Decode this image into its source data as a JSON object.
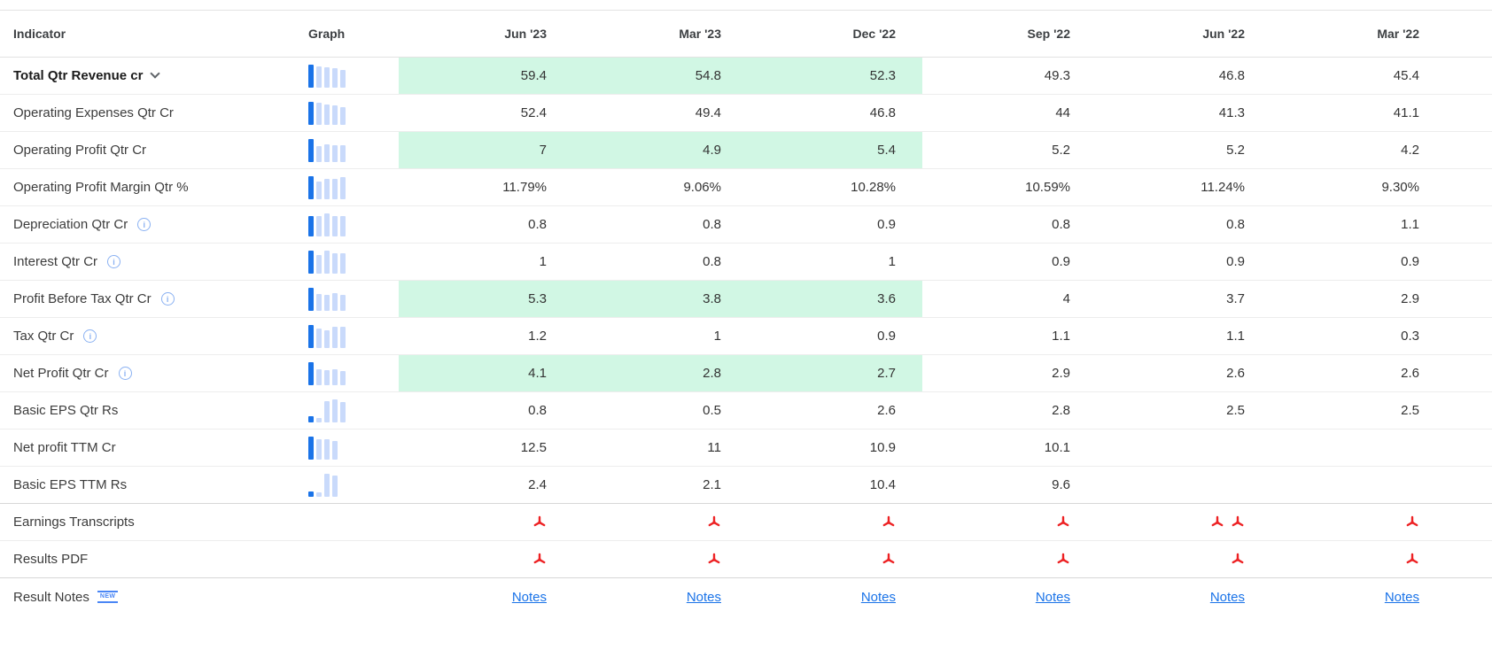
{
  "colors": {
    "highlight": "#d1f7e4",
    "bar_dark": "#1a73e8",
    "bar_light": "#c9dafb",
    "link": "#1a73e8",
    "pdf_red": "#ed2224",
    "badge_blue": "#4a86f5",
    "info_blue": "#8ab1f2"
  },
  "table": {
    "header": {
      "indicator": "Indicator",
      "graph": "Graph",
      "periods": [
        "Jun '23",
        "Mar '23",
        "Dec '22",
        "Sep '22",
        "Jun '22",
        "Mar '22"
      ]
    },
    "rows": [
      {
        "label": "Total Qtr Revenue cr",
        "bold": true,
        "chevron": true,
        "highlight": true,
        "type": "values",
        "values": [
          "59.4",
          "54.8",
          "52.3",
          "49.3",
          "46.8",
          "45.4"
        ],
        "spark": [
          59.4,
          54.8,
          52.3,
          49.3,
          46.8
        ]
      },
      {
        "label": "Operating Expenses Qtr Cr",
        "type": "values",
        "values": [
          "52.4",
          "49.4",
          "46.8",
          "44",
          "41.3",
          "41.1"
        ],
        "spark": [
          52.4,
          49.4,
          46.8,
          44,
          41.3
        ]
      },
      {
        "label": "Operating Profit Qtr Cr",
        "highlight": true,
        "type": "values",
        "values": [
          "7",
          "4.9",
          "5.4",
          "5.2",
          "5.2",
          "4.2"
        ],
        "spark": [
          7,
          4.9,
          5.4,
          5.2,
          5.2
        ]
      },
      {
        "label": "Operating Profit Margin Qtr %",
        "type": "values",
        "values": [
          "11.79%",
          "9.06%",
          "10.28%",
          "10.59%",
          "11.24%",
          "9.30%"
        ],
        "spark": [
          11.79,
          9.06,
          10.28,
          10.59,
          11.24
        ]
      },
      {
        "label": "Depreciation Qtr Cr",
        "info": true,
        "type": "values",
        "values": [
          "0.8",
          "0.8",
          "0.9",
          "0.8",
          "0.8",
          "1.1"
        ],
        "spark": [
          0.8,
          0.8,
          0.9,
          0.8,
          0.8
        ]
      },
      {
        "label": "Interest Qtr Cr",
        "info": true,
        "type": "values",
        "values": [
          "1",
          "0.8",
          "1",
          "0.9",
          "0.9",
          "0.9"
        ],
        "spark": [
          1,
          0.8,
          1,
          0.9,
          0.9
        ]
      },
      {
        "label": "Profit Before Tax Qtr Cr",
        "info": true,
        "highlight": true,
        "type": "values",
        "values": [
          "5.3",
          "3.8",
          "3.6",
          "4",
          "3.7",
          "2.9"
        ],
        "spark": [
          5.3,
          3.8,
          3.6,
          4,
          3.7
        ]
      },
      {
        "label": "Tax Qtr Cr",
        "info": true,
        "type": "values",
        "values": [
          "1.2",
          "1",
          "0.9",
          "1.1",
          "1.1",
          "0.3"
        ],
        "spark": [
          1.2,
          1,
          0.9,
          1.1,
          1.1
        ]
      },
      {
        "label": "Net Profit Qtr Cr",
        "info": true,
        "highlight": true,
        "type": "values",
        "values": [
          "4.1",
          "2.8",
          "2.7",
          "2.9",
          "2.6",
          "2.6"
        ],
        "spark": [
          4.1,
          2.8,
          2.7,
          2.9,
          2.6
        ]
      },
      {
        "label": "Basic EPS Qtr Rs",
        "type": "values",
        "values": [
          "0.8",
          "0.5",
          "2.6",
          "2.8",
          "2.5",
          "2.5"
        ],
        "spark": [
          0.8,
          0.5,
          2.6,
          2.8,
          2.5
        ]
      },
      {
        "label": "Net profit TTM Cr",
        "type": "values",
        "values": [
          "12.5",
          "11",
          "10.9",
          "10.1",
          "",
          ""
        ],
        "spark": [
          12.5,
          11,
          10.9,
          10.1
        ]
      },
      {
        "label": "Basic EPS TTM Rs",
        "type": "values",
        "divider": "strong",
        "values": [
          "2.4",
          "2.1",
          "10.4",
          "9.6",
          "",
          ""
        ],
        "spark": [
          2.4,
          2.1,
          10.4,
          9.6
        ]
      },
      {
        "label": "Earnings Transcripts",
        "type": "pdf",
        "pdf_counts": [
          1,
          1,
          1,
          1,
          2,
          1
        ]
      },
      {
        "label": "Results PDF",
        "type": "pdf",
        "divider": "strong",
        "pdf_counts": [
          1,
          1,
          1,
          1,
          1,
          1
        ]
      },
      {
        "label": "Result Notes",
        "badge": "NEW",
        "type": "notes",
        "divider": "none",
        "link_label": "Notes"
      }
    ]
  }
}
